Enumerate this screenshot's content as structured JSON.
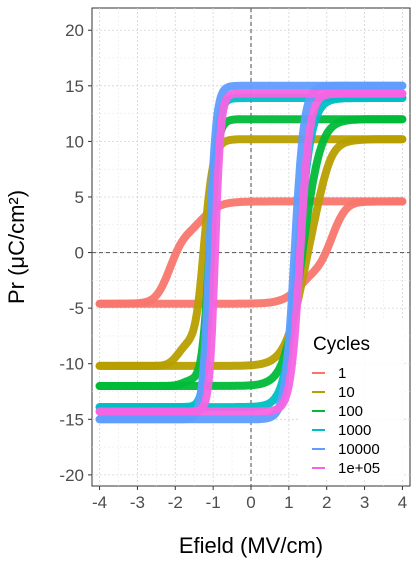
{
  "chart_data": {
    "type": "line",
    "xlabel": "Efield (MV/cm)",
    "ylabel": "Pr (μC/cm²)",
    "xlim": [
      -4.2,
      4.2
    ],
    "ylim": [
      -21,
      22
    ],
    "x_ticks": [
      -4,
      -3,
      -2,
      -1,
      0,
      1,
      2,
      3,
      4
    ],
    "y_ticks": [
      -20,
      -15,
      -10,
      -5,
      0,
      5,
      10,
      15,
      20
    ],
    "grid": true,
    "reference_lines": {
      "x": 0,
      "y": 0,
      "style": "dashed"
    },
    "legend": {
      "title": "Cycles",
      "placement": "bottom-right"
    },
    "series": [
      {
        "name": "1",
        "color": "#F8766D",
        "psat": 4.6,
        "ec_up": 1.6,
        "ec_down": -1.6,
        "width": 0.5,
        "width_down": 0.5,
        "bump": 3.0,
        "bump_x": 1.9,
        "bump_w": 0.45
      },
      {
        "name": "10",
        "color": "#B79F00",
        "psat": 10.2,
        "ec_up": 1.45,
        "ec_down": -1.25,
        "width": 0.5,
        "width_down": 0.25,
        "bump": 1.5,
        "bump_x": 1.7,
        "bump_w": 0.35
      },
      {
        "name": "100",
        "color": "#00BA38",
        "psat": 12.0,
        "ec_up": 1.35,
        "ec_down": -1.1,
        "width": 0.45,
        "width_down": 0.2,
        "bump": 0.4,
        "bump_x": 1.6,
        "bump_w": 0.3
      },
      {
        "name": "1000",
        "color": "#00BFC4",
        "psat": 13.9,
        "ec_up": 1.25,
        "ec_down": -1.05,
        "width": 0.35,
        "width_down": 0.18,
        "bump": 0,
        "bump_x": 1.5,
        "bump_w": 0.3
      },
      {
        "name": "10000",
        "color": "#619CFF",
        "psat": 15.0,
        "ec_up": 1.15,
        "ec_down": -1.1,
        "width": 0.25,
        "width_down": 0.18,
        "bump": 0,
        "bump_x": 1.5,
        "bump_w": 0.3
      },
      {
        "name": "1e+05",
        "color": "#F564E3",
        "psat": 14.3,
        "ec_up": 1.3,
        "ec_down": -0.95,
        "width": 0.25,
        "width_down": 0.15,
        "bump": 0,
        "bump_x": 1.5,
        "bump_w": 0.3
      }
    ]
  }
}
